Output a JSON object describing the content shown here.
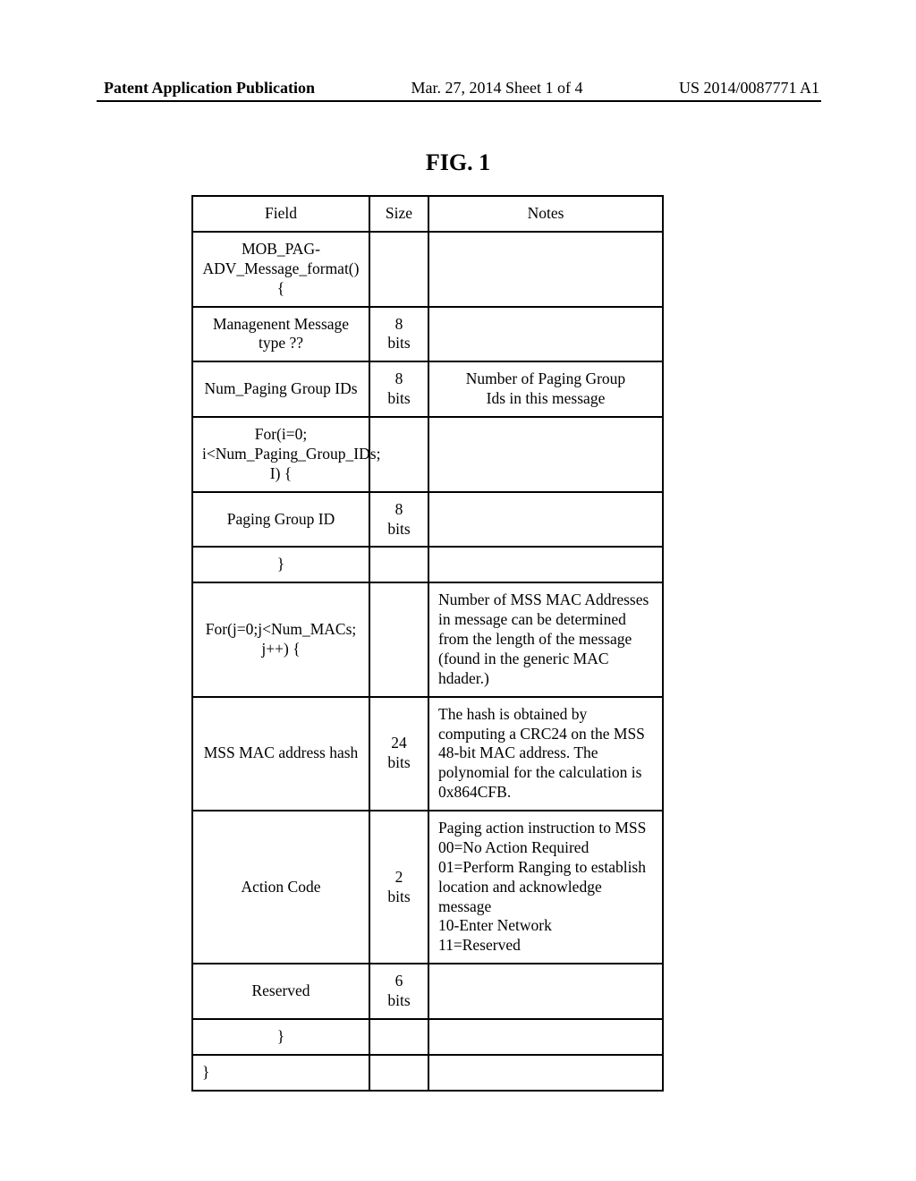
{
  "header": {
    "left": "Patent Application Publication",
    "center": "Mar. 27, 2014  Sheet 1 of 4",
    "right": "US 2014/0087771 A1"
  },
  "figure_title": "FIG. 1",
  "table": {
    "columns": [
      "Field",
      "Size",
      "Notes"
    ],
    "rows": [
      {
        "field": "MOB_PAG-\nADV_Message_format(){",
        "size": "",
        "notes": "",
        "field_align": "center"
      },
      {
        "field": "Managenent Message\ntype ??",
        "size": "8\nbits",
        "notes": "",
        "field_align": "center"
      },
      {
        "field": "Num_Paging Group IDs",
        "size": "8\nbits",
        "notes": "Number of Paging Group\nIds in this message",
        "field_align": "center",
        "notes_align": "center"
      },
      {
        "field": "For(i=0;\ni<Num_Paging_Group_IDs;\nI) {",
        "size": "",
        "notes": "",
        "field_align": "center"
      },
      {
        "field": "Paging Group ID",
        "size": "8\nbits",
        "notes": "",
        "field_align": "center"
      },
      {
        "field": "}",
        "size": "",
        "notes": "",
        "field_align": "center"
      },
      {
        "field": "For(j=0;j<Num_MACs;\nj++) {",
        "size": "",
        "notes": "Number of MSS MAC Addresses in message can be determined from the length of the message (found in the generic MAC hdader.)",
        "field_align": "center",
        "notes_align": "left"
      },
      {
        "field": "MSS MAC address hash",
        "size": "24\nbits",
        "notes": "The hash is obtained by computing a CRC24 on the MSS 48-bit MAC address. The polynomial for the calculation is 0x864CFB.",
        "field_align": "center",
        "notes_align": "left"
      },
      {
        "field": "Action Code",
        "size": "2\nbits",
        "notes": "Paging action instruction to MSS\n00=No Action Required\n01=Perform Ranging to establish location and acknowledge message\n10-Enter Network\n11=Reserved",
        "field_align": "center",
        "notes_align": "left"
      },
      {
        "field": "Reserved",
        "size": "6\nbits",
        "notes": "",
        "field_align": "center"
      },
      {
        "field": "}",
        "size": "",
        "notes": "",
        "field_align": "center"
      },
      {
        "field": "}",
        "size": "",
        "notes": "",
        "field_align": "left"
      }
    ]
  }
}
